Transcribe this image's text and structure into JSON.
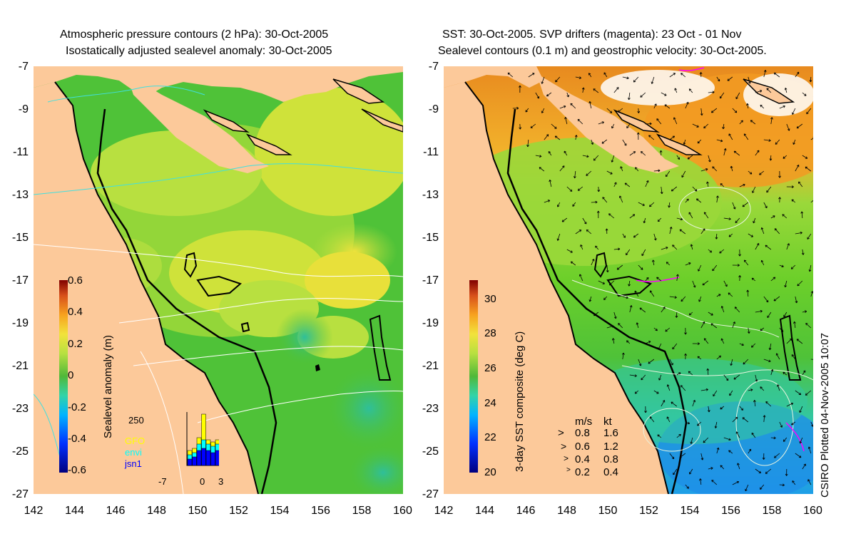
{
  "left_panel": {
    "title_line1": "Atmospheric pressure contours (2 hPa): 30-Oct-2005",
    "title_line2": "Isostatically adjusted sealevel anomaly: 30-Oct-2005",
    "colorbar": {
      "label": "Sealevel anomaly (m)",
      "ticks": [
        "0.6",
        "0.4",
        "0.2",
        "0",
        "-0.2",
        "-0.4",
        "-0.6"
      ],
      "range": [
        -0.6,
        0.6
      ],
      "colors": [
        "#00007f",
        "#0030ff",
        "#00b4ff",
        "#33d3a8",
        "#4fb83a",
        "#6ccf2a",
        "#b8e040",
        "#f2e23b",
        "#f7a21f",
        "#d8501a",
        "#800000"
      ]
    },
    "inset": {
      "ymax_label": "250",
      "series": [
        {
          "name": "GFO",
          "color": "#ffff00"
        },
        {
          "name": "envi",
          "color": "#00ffff"
        },
        {
          "name": "jsn1",
          "color": "#0000ff"
        }
      ],
      "x_ticks": [
        "-7",
        "0",
        "3"
      ],
      "bars_total": [
        70,
        80,
        130,
        240,
        120,
        110,
        120,
        90,
        70,
        60,
        80,
        60,
        80
      ],
      "bars_envi": [
        50,
        60,
        100,
        120,
        100,
        90,
        100,
        80,
        60,
        50,
        60,
        50,
        60
      ],
      "bars_jsn1": [
        30,
        40,
        70,
        80,
        70,
        60,
        70,
        60,
        50,
        40,
        50,
        40,
        60
      ]
    }
  },
  "right_panel": {
    "title_line1": "SST: 30-Oct-2005. SVP drifters (magenta): 23 Oct - 01 Nov",
    "title_line2": "Sealevel contours (0.1 m) and geostrophic velocity: 30-Oct-2005.",
    "colorbar": {
      "label": "3-day SST composite (deg C)",
      "ticks": [
        "30",
        "28",
        "26",
        "24",
        "22",
        "20"
      ],
      "range": [
        20,
        31
      ],
      "colors": [
        "#00007f",
        "#0030ff",
        "#00b4ff",
        "#33d3a8",
        "#4fb83a",
        "#6ccf2a",
        "#b8e040",
        "#f2e23b",
        "#f7a21f",
        "#d8501a",
        "#800000"
      ]
    },
    "velocity_legend": {
      "header_ms": "m/s",
      "header_kt": "kt",
      "rows": [
        {
          "ms": "0.8",
          "kt": "1.6"
        },
        {
          "ms": "0.6",
          "kt": "1.2"
        },
        {
          "ms": "0.4",
          "kt": "0.8"
        },
        {
          "ms": "0.2",
          "kt": "0.4"
        }
      ]
    },
    "credit": "CSIRO Plotted 04-Nov-2005 10:07"
  },
  "axes": {
    "lat_ticks": [
      "-7",
      "-9",
      "-11",
      "-13",
      "-15",
      "-17",
      "-19",
      "-21",
      "-23",
      "-25",
      "-27"
    ],
    "lon_ticks": [
      "142",
      "144",
      "146",
      "148",
      "150",
      "152",
      "154",
      "156",
      "158",
      "160"
    ]
  },
  "colors": {
    "land": "#fcc99a",
    "sea_green": "#4cc63a",
    "sea_yellow": "#cfe23a",
    "coast": "#000000",
    "contour_white": "#ffffff",
    "contour_cyan": "#40e0e0"
  }
}
